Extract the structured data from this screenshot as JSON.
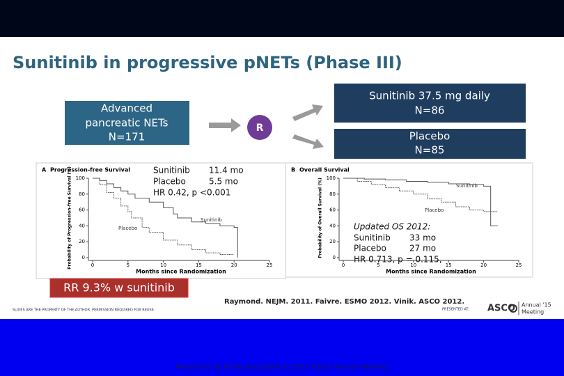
{
  "slide": {
    "title": "Sunitinib in progressive pNETs (Phase III)",
    "enrolment": [
      "Advanced",
      "pancreatic NETs",
      "N=171"
    ],
    "randomize": "R",
    "arm_1": [
      "Sunitinib 37.5 mg daily",
      "N=86"
    ],
    "arm_2": [
      "Placebo",
      "N=85"
    ],
    "panels": [
      {
        "letter": "A",
        "title": "Progression-free Survival",
        "ylabel": "Probability of Progression-free Survival (%)",
        "xlabel": "Months since Randomization",
        "notes": [
          "Sunitinib",
          "11.4 mo",
          "Placebo",
          "5.5 mo",
          "HR 0.42, p <0.001"
        ],
        "xlim": [
          0,
          25
        ],
        "ylim": [
          0,
          100
        ],
        "xticks": [
          0,
          5,
          10,
          15,
          20,
          25
        ],
        "yticks": [
          0,
          20,
          40,
          60,
          80,
          100
        ],
        "series": [
          {
            "name": "Sunitinib",
            "color": "#555555",
            "x": [
              0,
              1,
              2,
              3,
              4,
              5,
              6,
              8,
              10,
              11.4,
              12,
              14,
              16,
              18,
              20,
              20.5
            ],
            "values": [
              100,
              97,
              93,
              88,
              84,
              80,
              75,
              70,
              63,
              55,
              50,
              45,
              43,
              40,
              38,
              0
            ]
          },
          {
            "name": "Placebo",
            "color": "#555555",
            "x": [
              0,
              1,
              2,
              3,
              4,
              5,
              5.5,
              7,
              8,
              10,
              12,
              14,
              16,
              18,
              20
            ],
            "values": [
              100,
              92,
              82,
              75,
              65,
              58,
              50,
              38,
              32,
              22,
              16,
              10,
              6,
              4,
              4
            ]
          }
        ]
      },
      {
        "letter": "B",
        "title": "Overall Survival",
        "ylabel": "Probability of Overall Survival (%)",
        "xlabel": "Months since Randomization",
        "notes": [
          "Updated OS 2012:",
          "Sunitinib",
          "33 mo",
          "Placebo",
          "27 mo",
          "HR 0.713, p = 0.115,"
        ],
        "xlim": [
          0,
          25
        ],
        "ylim": [
          0,
          100
        ],
        "xticks": [
          0,
          5,
          10,
          15,
          20,
          25
        ],
        "yticks": [
          0,
          20,
          40,
          60,
          80,
          100
        ],
        "series": [
          {
            "name": "Sunitinib",
            "color": "#555555",
            "x": [
              0,
              3,
              6,
              9,
              12,
              15,
              18,
              20,
              21,
              22
            ],
            "values": [
              100,
              99,
              98,
              96,
              95,
              93,
              92,
              90,
              40,
              40
            ]
          },
          {
            "name": "Placebo",
            "color": "#555555",
            "x": [
              0,
              2,
              4,
              6,
              8,
              10,
              12,
              14,
              16,
              18,
              20,
              22
            ],
            "values": [
              100,
              96,
              92,
              88,
              84,
              80,
              74,
              70,
              64,
              60,
              58,
              58
            ]
          }
        ]
      }
    ],
    "response": "RR 9.3% w sunitinib",
    "citation": "Raymond. NEJM. 2011. Faivre. ESMO 2012.  Vinik. ASCO 2012.",
    "disclaimer": "SLIDES ARE THE PROPERTY OF THE AUTHOR. PERMISSION REQUIRED FOR REUSE.",
    "presented_at": "PRESENTED AT:",
    "logo": "ASCO",
    "meeting": [
      "Annual '15",
      "Meeting"
    ],
    "footer": "Presented By Emily Bergsland at 2015 ASCO Annual Meeting"
  }
}
